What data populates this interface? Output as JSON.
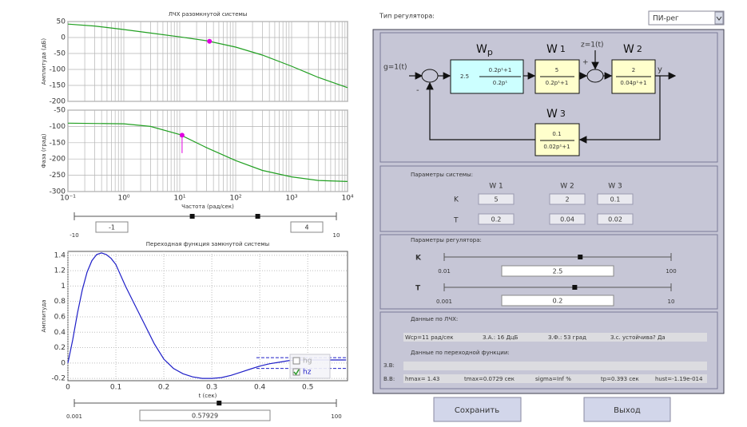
{
  "chart_data": [
    {
      "type": "line",
      "title": "ЛЧХ разомкнутой системы",
      "ylabel": "Амплитуда (дБ)",
      "xlog": true,
      "grid": "solid",
      "xlim": [
        0.1,
        10000
      ],
      "ylim": [
        -200,
        50
      ],
      "xticks": [
        0.1,
        1,
        10,
        100,
        1000,
        10000
      ],
      "xticklabels": false,
      "yticks": [
        50,
        0,
        -50,
        -100,
        -150,
        -200
      ],
      "x": [
        0.1,
        0.3,
        1,
        3,
        10,
        30,
        100,
        300,
        1000,
        3000,
        10000
      ],
      "series": [
        {
          "color": "#22a022",
          "values": [
            42,
            36,
            25,
            14,
            2,
            -10,
            -30,
            -55,
            -90,
            -125,
            -157
          ]
        }
      ],
      "marker": {
        "x": 34,
        "y": -12,
        "color": "#e000e0"
      }
    },
    {
      "type": "line",
      "xlabel": "Частота (рад/сек)",
      "ylabel": "Фаза (град)",
      "xlog": true,
      "grid": "solid",
      "xlim": [
        0.1,
        10000
      ],
      "ylim": [
        -300,
        -50
      ],
      "xticks": [
        {
          "value": 0.1,
          "label": "10⁻¹"
        },
        {
          "value": 1,
          "label": "10⁰"
        },
        {
          "value": 10,
          "label": "10¹"
        },
        {
          "value": 100,
          "label": "10²"
        },
        {
          "value": 1000,
          "label": "10³"
        },
        {
          "value": 10000,
          "label": "10⁴"
        }
      ],
      "yticks": [
        -50,
        -100,
        -150,
        -200,
        -250,
        -300
      ],
      "x": [
        0.1,
        1,
        3,
        10,
        30,
        100,
        300,
        1000,
        3000,
        10000
      ],
      "series": [
        {
          "color": "#22a022",
          "values": [
            -90,
            -92,
            -100,
            -125,
            -165,
            -205,
            -235,
            -255,
            -266,
            -269
          ]
        }
      ],
      "marker": {
        "x": 11,
        "y": -127,
        "stem": -182,
        "color": "#e000e0"
      }
    },
    {
      "type": "line",
      "title": "Переходная функция замкнутой системы",
      "ylabel": "Амплитуда",
      "xlabel": "t (сек)",
      "grid": "dotted",
      "xlim": [
        0,
        0.583
      ],
      "ylim": [
        -0.23,
        1.45
      ],
      "xticks": [
        0,
        0.1,
        0.2,
        0.3,
        0.4,
        0.5
      ],
      "yticks": [
        -0.2,
        0,
        0.2,
        0.4,
        0.6,
        0.8,
        1,
        1.2,
        1.4
      ],
      "x": [
        0,
        0.01,
        0.02,
        0.03,
        0.04,
        0.05,
        0.06,
        0.07,
        0.08,
        0.09,
        0.1,
        0.12,
        0.14,
        0.16,
        0.18,
        0.2,
        0.22,
        0.24,
        0.26,
        0.28,
        0.3,
        0.32,
        0.34,
        0.36,
        0.38,
        0.4,
        0.42,
        0.44,
        0.46,
        0.48,
        0.5,
        0.52,
        0.54,
        0.56,
        0.58
      ],
      "series": [
        {
          "name": "hz",
          "checked": true,
          "color": "#1f1fc8",
          "values": [
            0,
            0.3,
            0.65,
            0.95,
            1.18,
            1.33,
            1.41,
            1.43,
            1.41,
            1.36,
            1.28,
            1.0,
            0.75,
            0.5,
            0.25,
            0.05,
            -0.07,
            -0.14,
            -0.18,
            -0.2,
            -0.2,
            -0.19,
            -0.16,
            -0.12,
            -0.08,
            -0.04,
            -0.01,
            0.01,
            0.03,
            0.04,
            0.04,
            0.04,
            0.04,
            0.04,
            0.04
          ]
        }
      ],
      "band": {
        "from": 0.393,
        "values": [
          0.07,
          -0.07
        ],
        "color": "#1f1fc8"
      },
      "legend": {
        "position": "lower right",
        "extra": [
          {
            "name": "hg",
            "checked": false,
            "color": "#a8a8a8"
          }
        ]
      }
    }
  ],
  "freq_slider": {
    "min": -10,
    "max": 10,
    "values": [
      -1,
      4
    ]
  },
  "time_slider": {
    "min": 0.001,
    "max": 100,
    "log": true,
    "values": [
      0.57929
    ]
  },
  "ui": {
    "controller_label": "Тип регулятора:",
    "controller_value": "ПИ-рег",
    "diagram": {
      "input": "g=1(t)",
      "disturbance": "z=1(t)",
      "output": "y",
      "plus": "+",
      "minus": "-",
      "wp": {
        "name": "W",
        "sub": "p",
        "gain": "2.5",
        "num": "0.2p¹+1",
        "den": "0.2p¹"
      },
      "w1": {
        "name": "W",
        "sub": "1",
        "num": "5",
        "den": "0.2p¹+1"
      },
      "w2": {
        "name": "W",
        "sub": "2",
        "num": "2",
        "den": "0.04p¹+1"
      },
      "w3": {
        "name": "W",
        "sub": "3",
        "num": "0.1",
        "den": "0.02p¹+1"
      }
    },
    "system": {
      "title": "Параметры системы:",
      "columns": [
        "W 1",
        "W 2",
        "W 3"
      ],
      "rows": [
        {
          "label": "K",
          "values": [
            5,
            2,
            0.1
          ]
        },
        {
          "label": "T",
          "values": [
            0.2,
            0.04,
            0.02
          ]
        }
      ]
    },
    "regulator": {
      "title": "Параметры регулятора:",
      "k": {
        "label": "K",
        "min": 0.01,
        "max": 100,
        "log": true,
        "values": [
          2.5
        ]
      },
      "t": {
        "label": "T",
        "min": 0.001,
        "max": 10,
        "log": true,
        "values": [
          0.2
        ]
      }
    },
    "lch": {
      "title": "Данные по ЛЧХ:",
      "items": [
        "Wcp=11 рад/сек",
        "З.А.: 16 ДцБ",
        "З.Ф.: 53 град",
        "З.с. устойчива? Да"
      ]
    },
    "step": {
      "title": "Данные по переходной функции:",
      "zv_label": "З.В:",
      "vv_label": "В.В:",
      "items": [
        "hmax= 1.43",
        "tmax=0.0729 сек",
        "sigma=Inf %",
        "tp=0.393 сек",
        "hust=-1.19e-014"
      ]
    },
    "buttons": [
      "Сохранить",
      "Выход"
    ]
  }
}
